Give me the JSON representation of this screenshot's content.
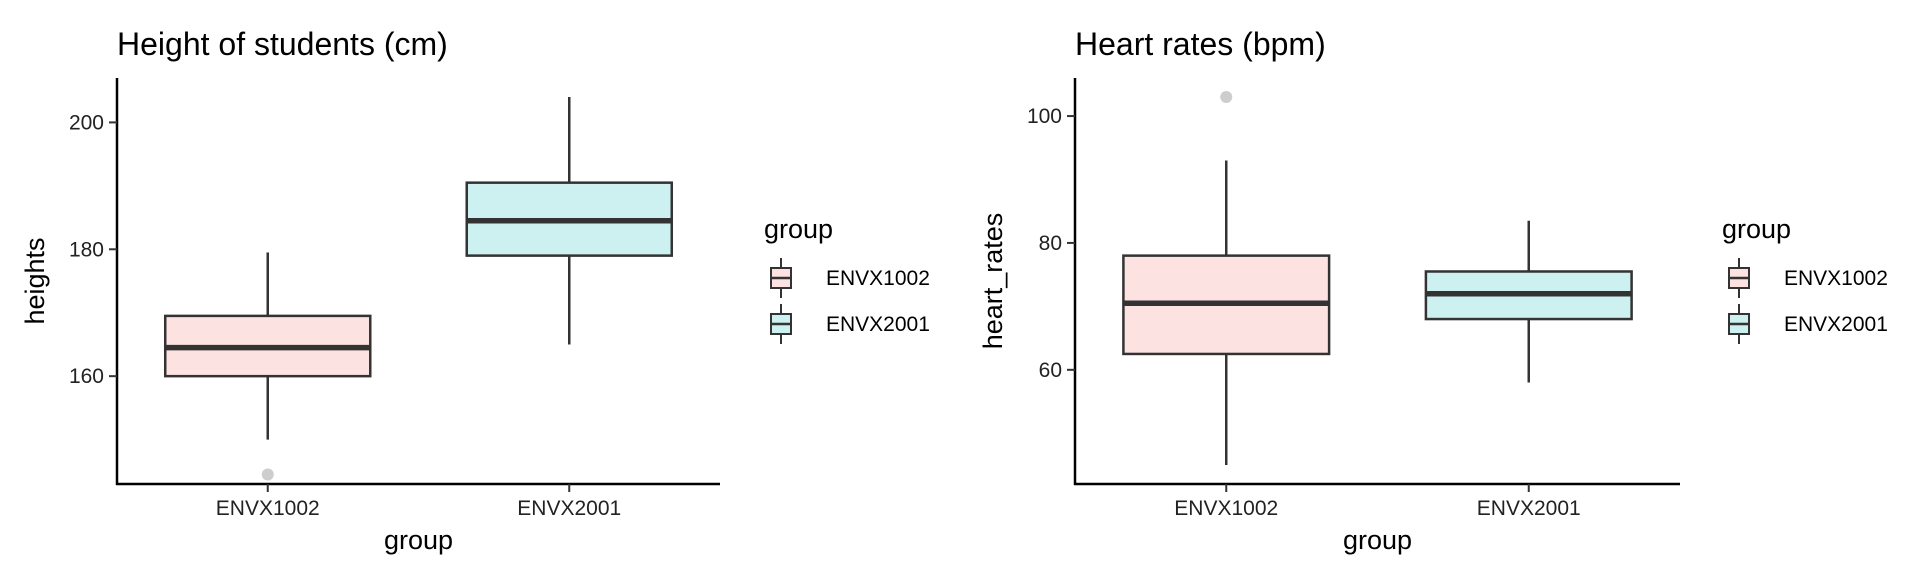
{
  "colors": {
    "ENVX1002": "#FDE2E2",
    "ENVX2001": "#CDF0F0",
    "line": "#333333",
    "outlier": "#B8B8B8"
  },
  "chart_data": [
    {
      "type": "boxplot",
      "title": "Height of students (cm)",
      "xlabel": "group",
      "ylabel": "heights",
      "categories": [
        "ENVX1002",
        "ENVX2001"
      ],
      "ylim": [
        143,
        207
      ],
      "yticks": [
        160,
        180,
        200
      ],
      "grid": false,
      "legend": {
        "title": "group",
        "position": "right",
        "entries": [
          "ENVX1002",
          "ENVX2001"
        ]
      },
      "boxes": [
        {
          "group": "ENVX1002",
          "whisker_low": 150,
          "q1": 160,
          "median": 164.5,
          "q3": 169.5,
          "whisker_high": 179.5,
          "outliers": [
            144.5
          ]
        },
        {
          "group": "ENVX2001",
          "whisker_low": 165,
          "q1": 179,
          "median": 184.5,
          "q3": 190.5,
          "whisker_high": 204,
          "outliers": []
        }
      ]
    },
    {
      "type": "boxplot",
      "title": "Heart rates (bpm)",
      "xlabel": "group",
      "ylabel": "heart_rates",
      "categories": [
        "ENVX1002",
        "ENVX2001"
      ],
      "ylim": [
        42,
        106
      ],
      "yticks": [
        60,
        80,
        100
      ],
      "grid": false,
      "legend": {
        "title": "group",
        "position": "right",
        "entries": [
          "ENVX1002",
          "ENVX2001"
        ]
      },
      "boxes": [
        {
          "group": "ENVX1002",
          "whisker_low": 45,
          "q1": 62.5,
          "median": 70.5,
          "q3": 78,
          "whisker_high": 93,
          "outliers": [
            103
          ]
        },
        {
          "group": "ENVX2001",
          "whisker_low": 58,
          "q1": 68,
          "median": 72,
          "q3": 75.5,
          "whisker_high": 83.5,
          "outliers": []
        }
      ]
    }
  ]
}
